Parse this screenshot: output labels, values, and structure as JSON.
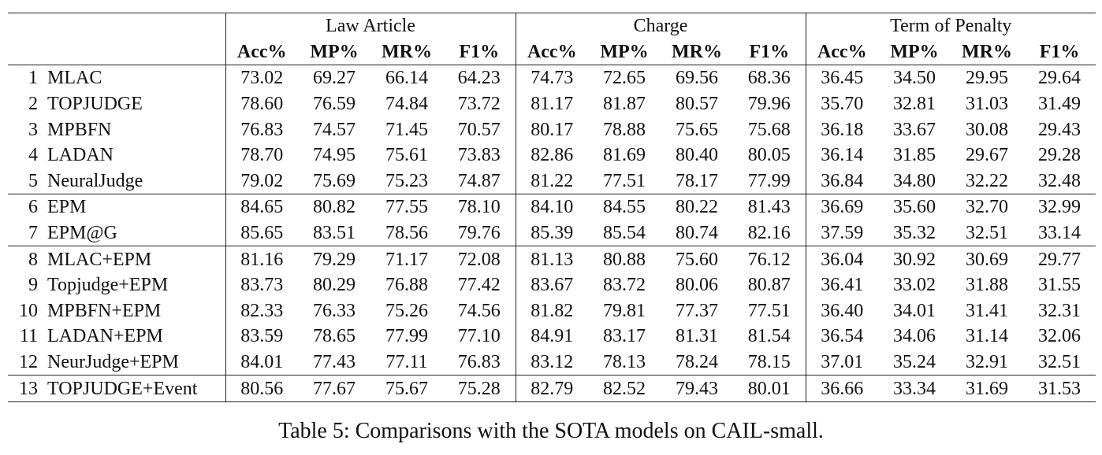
{
  "groups": [
    "Law Article",
    "Charge",
    "Term of Penalty"
  ],
  "metrics": [
    "Acc%",
    "MP%",
    "MR%",
    "F1%"
  ],
  "rows": [
    {
      "idx": "1",
      "model": "MLAC",
      "vals": [
        "73.02",
        "69.27",
        "66.14",
        "64.23",
        "74.73",
        "72.65",
        "69.56",
        "68.36",
        "36.45",
        "34.50",
        "29.95",
        "29.64"
      ]
    },
    {
      "idx": "2",
      "model": "TOPJUDGE",
      "vals": [
        "78.60",
        "76.59",
        "74.84",
        "73.72",
        "81.17",
        "81.87",
        "80.57",
        "79.96",
        "35.70",
        "32.81",
        "31.03",
        "31.49"
      ]
    },
    {
      "idx": "3",
      "model": "MPBFN",
      "vals": [
        "76.83",
        "74.57",
        "71.45",
        "70.57",
        "80.17",
        "78.88",
        "75.65",
        "75.68",
        "36.18",
        "33.67",
        "30.08",
        "29.43"
      ]
    },
    {
      "idx": "4",
      "model": "LADAN",
      "vals": [
        "78.70",
        "74.95",
        "75.61",
        "73.83",
        "82.86",
        "81.69",
        "80.40",
        "80.05",
        "36.14",
        "31.85",
        "29.67",
        "29.28"
      ]
    },
    {
      "idx": "5",
      "model": "NeuralJudge",
      "vals": [
        "79.02",
        "75.69",
        "75.23",
        "74.87",
        "81.22",
        "77.51",
        "78.17",
        "77.99",
        "36.84",
        "34.80",
        "32.22",
        "32.48"
      ]
    },
    {
      "idx": "6",
      "model": "EPM",
      "vals": [
        "84.65",
        "80.82",
        "77.55",
        "78.10",
        "84.10",
        "84.55",
        "80.22",
        "81.43",
        "36.69",
        "35.60",
        "32.70",
        "32.99"
      ]
    },
    {
      "idx": "7",
      "model": "EPM@G",
      "vals": [
        "85.65",
        "83.51",
        "78.56",
        "79.76",
        "85.39",
        "85.54",
        "80.74",
        "82.16",
        "37.59",
        "35.32",
        "32.51",
        "33.14"
      ]
    },
    {
      "idx": "8",
      "model": "MLAC+EPM",
      "vals": [
        "81.16",
        "79.29",
        "71.17",
        "72.08",
        "81.13",
        "80.88",
        "75.60",
        "76.12",
        "36.04",
        "30.92",
        "30.69",
        "29.77"
      ]
    },
    {
      "idx": "9",
      "model": "Topjudge+EPM",
      "vals": [
        "83.73",
        "80.29",
        "76.88",
        "77.42",
        "83.67",
        "83.72",
        "80.06",
        "80.87",
        "36.41",
        "33.02",
        "31.88",
        "31.55"
      ]
    },
    {
      "idx": "10",
      "model": "MPBFN+EPM",
      "vals": [
        "82.33",
        "76.33",
        "75.26",
        "74.56",
        "81.82",
        "79.81",
        "77.37",
        "77.51",
        "36.40",
        "34.01",
        "31.41",
        "32.31"
      ]
    },
    {
      "idx": "11",
      "model": "LADAN+EPM",
      "vals": [
        "83.59",
        "78.65",
        "77.99",
        "77.10",
        "84.91",
        "83.17",
        "81.31",
        "81.54",
        "36.54",
        "34.06",
        "31.14",
        "32.06"
      ]
    },
    {
      "idx": "12",
      "model": "NeurJudge+EPM",
      "vals": [
        "84.01",
        "77.43",
        "77.11",
        "76.83",
        "83.12",
        "78.13",
        "78.24",
        "78.15",
        "37.01",
        "35.24",
        "32.91",
        "32.51"
      ]
    },
    {
      "idx": "13",
      "model": "TOPJUDGE+Event",
      "vals": [
        "80.56",
        "77.67",
        "75.67",
        "75.28",
        "82.79",
        "82.52",
        "79.43",
        "80.01",
        "36.66",
        "33.34",
        "31.69",
        "31.53"
      ]
    }
  ],
  "caption": "Table 5: Comparisons with the SOTA models on CAIL-small."
}
